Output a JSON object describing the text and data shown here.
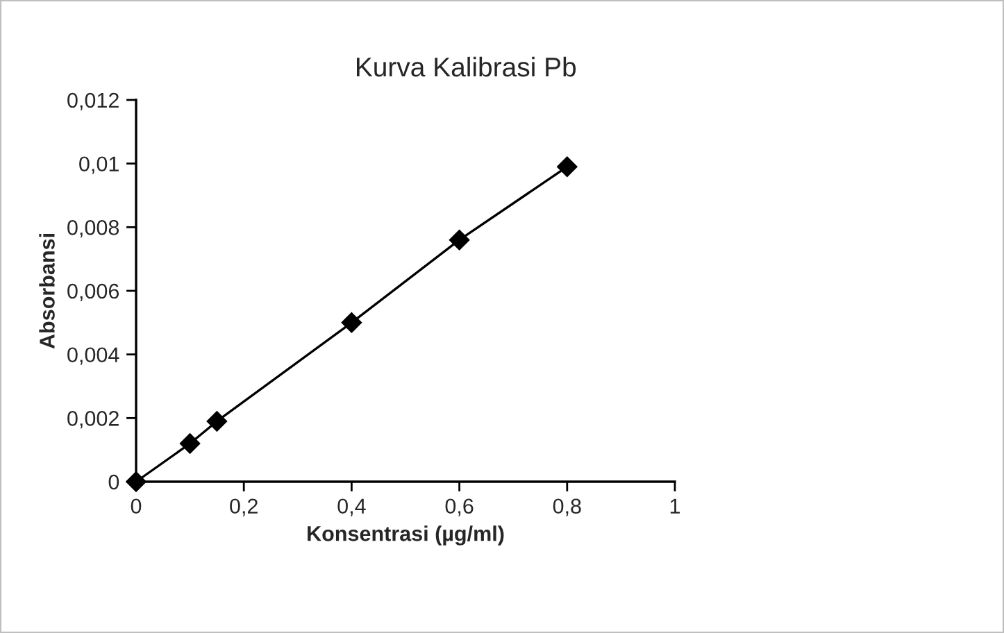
{
  "chart_data": {
    "type": "line",
    "title": "Kurva Kalibrasi Pb",
    "xlabel": "Konsentrasi (µg/ml)",
    "ylabel": "Absorbansi",
    "x": [
      0,
      0.1,
      0.15,
      0.4,
      0.6,
      0.8
    ],
    "series": [
      {
        "color": "#000000",
        "values": [
          0,
          0.0012,
          0.0019,
          0.005,
          0.0076,
          0.0099
        ]
      }
    ],
    "marker": "diamond",
    "line_style": "solid",
    "grid": false,
    "xlim": [
      0,
      1
    ],
    "xticks": [
      0,
      {
        "value": 0.2,
        "label": "0,2"
      },
      {
        "value": 0.4,
        "label": "0,4"
      },
      {
        "value": 0.6,
        "label": "0,6"
      },
      {
        "value": 0.8,
        "label": "0,8"
      },
      1
    ],
    "ylim": [
      0,
      0.012
    ],
    "yticks": [
      0,
      {
        "value": 0.002,
        "label": "0,002"
      },
      {
        "value": 0.004,
        "label": "0,004"
      },
      {
        "value": 0.006,
        "label": "0,006"
      },
      {
        "value": 0.008,
        "label": "0,008"
      },
      {
        "value": 0.01,
        "label": "0,01"
      },
      {
        "value": 0.012,
        "label": "0,012"
      }
    ]
  }
}
